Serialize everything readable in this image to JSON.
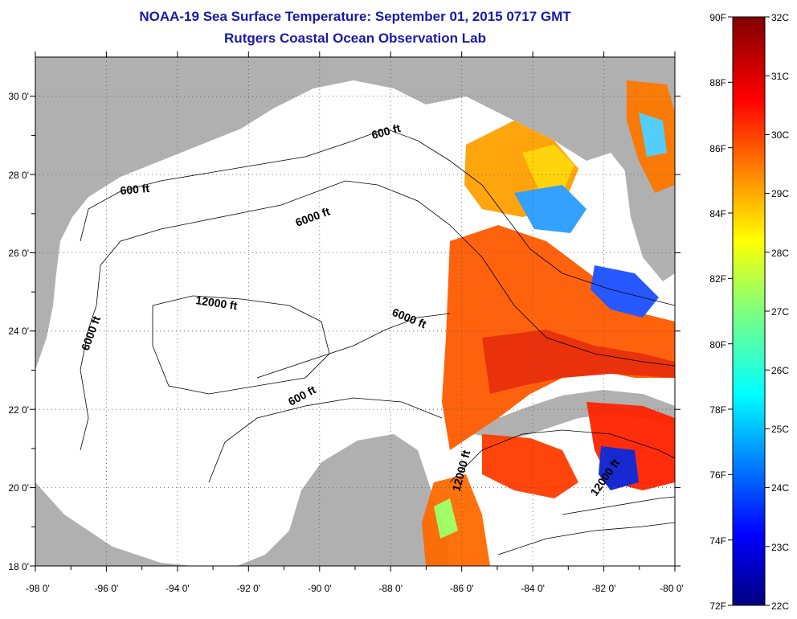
{
  "header": {
    "title": "NOAA-19 Sea Surface Temperature:  September 01, 2015 0717 GMT",
    "subtitle": "Rutgers Coastal Ocean Observation Lab"
  },
  "map": {
    "land_color": "#b0b0b0",
    "water_color": "#ffffff",
    "lat_range": [
      18,
      31
    ],
    "lon_range": [
      -98,
      -80
    ],
    "lat_labels": [
      "18 0'",
      "20 0'",
      "22 0'",
      "24 0'",
      "26 0'",
      "28 0'",
      "30 0'"
    ],
    "lon_labels": [
      "-98 0'",
      "-96 0'",
      "-94 0'",
      "-92 0'",
      "-90 0'",
      "-88 0'",
      "-86 0'",
      "-84 0'",
      "-82 0'",
      "-80 0'"
    ],
    "contour_labels": [
      "600 ft",
      "6000 ft",
      "12000 ft",
      "6000 ft",
      "6000 ft",
      "600 ft",
      "600 ft",
      "12000 ft",
      "12000 ft"
    ]
  },
  "colorbar": {
    "fahrenheit": [
      "90F",
      "88F",
      "86F",
      "84F",
      "82F",
      "80F",
      "78F",
      "76F",
      "74F",
      "72F"
    ],
    "celsius": [
      "32C",
      "31C",
      "30C",
      "29C",
      "28C",
      "27C",
      "26C",
      "25C",
      "24C",
      "23C",
      "22C"
    ]
  }
}
